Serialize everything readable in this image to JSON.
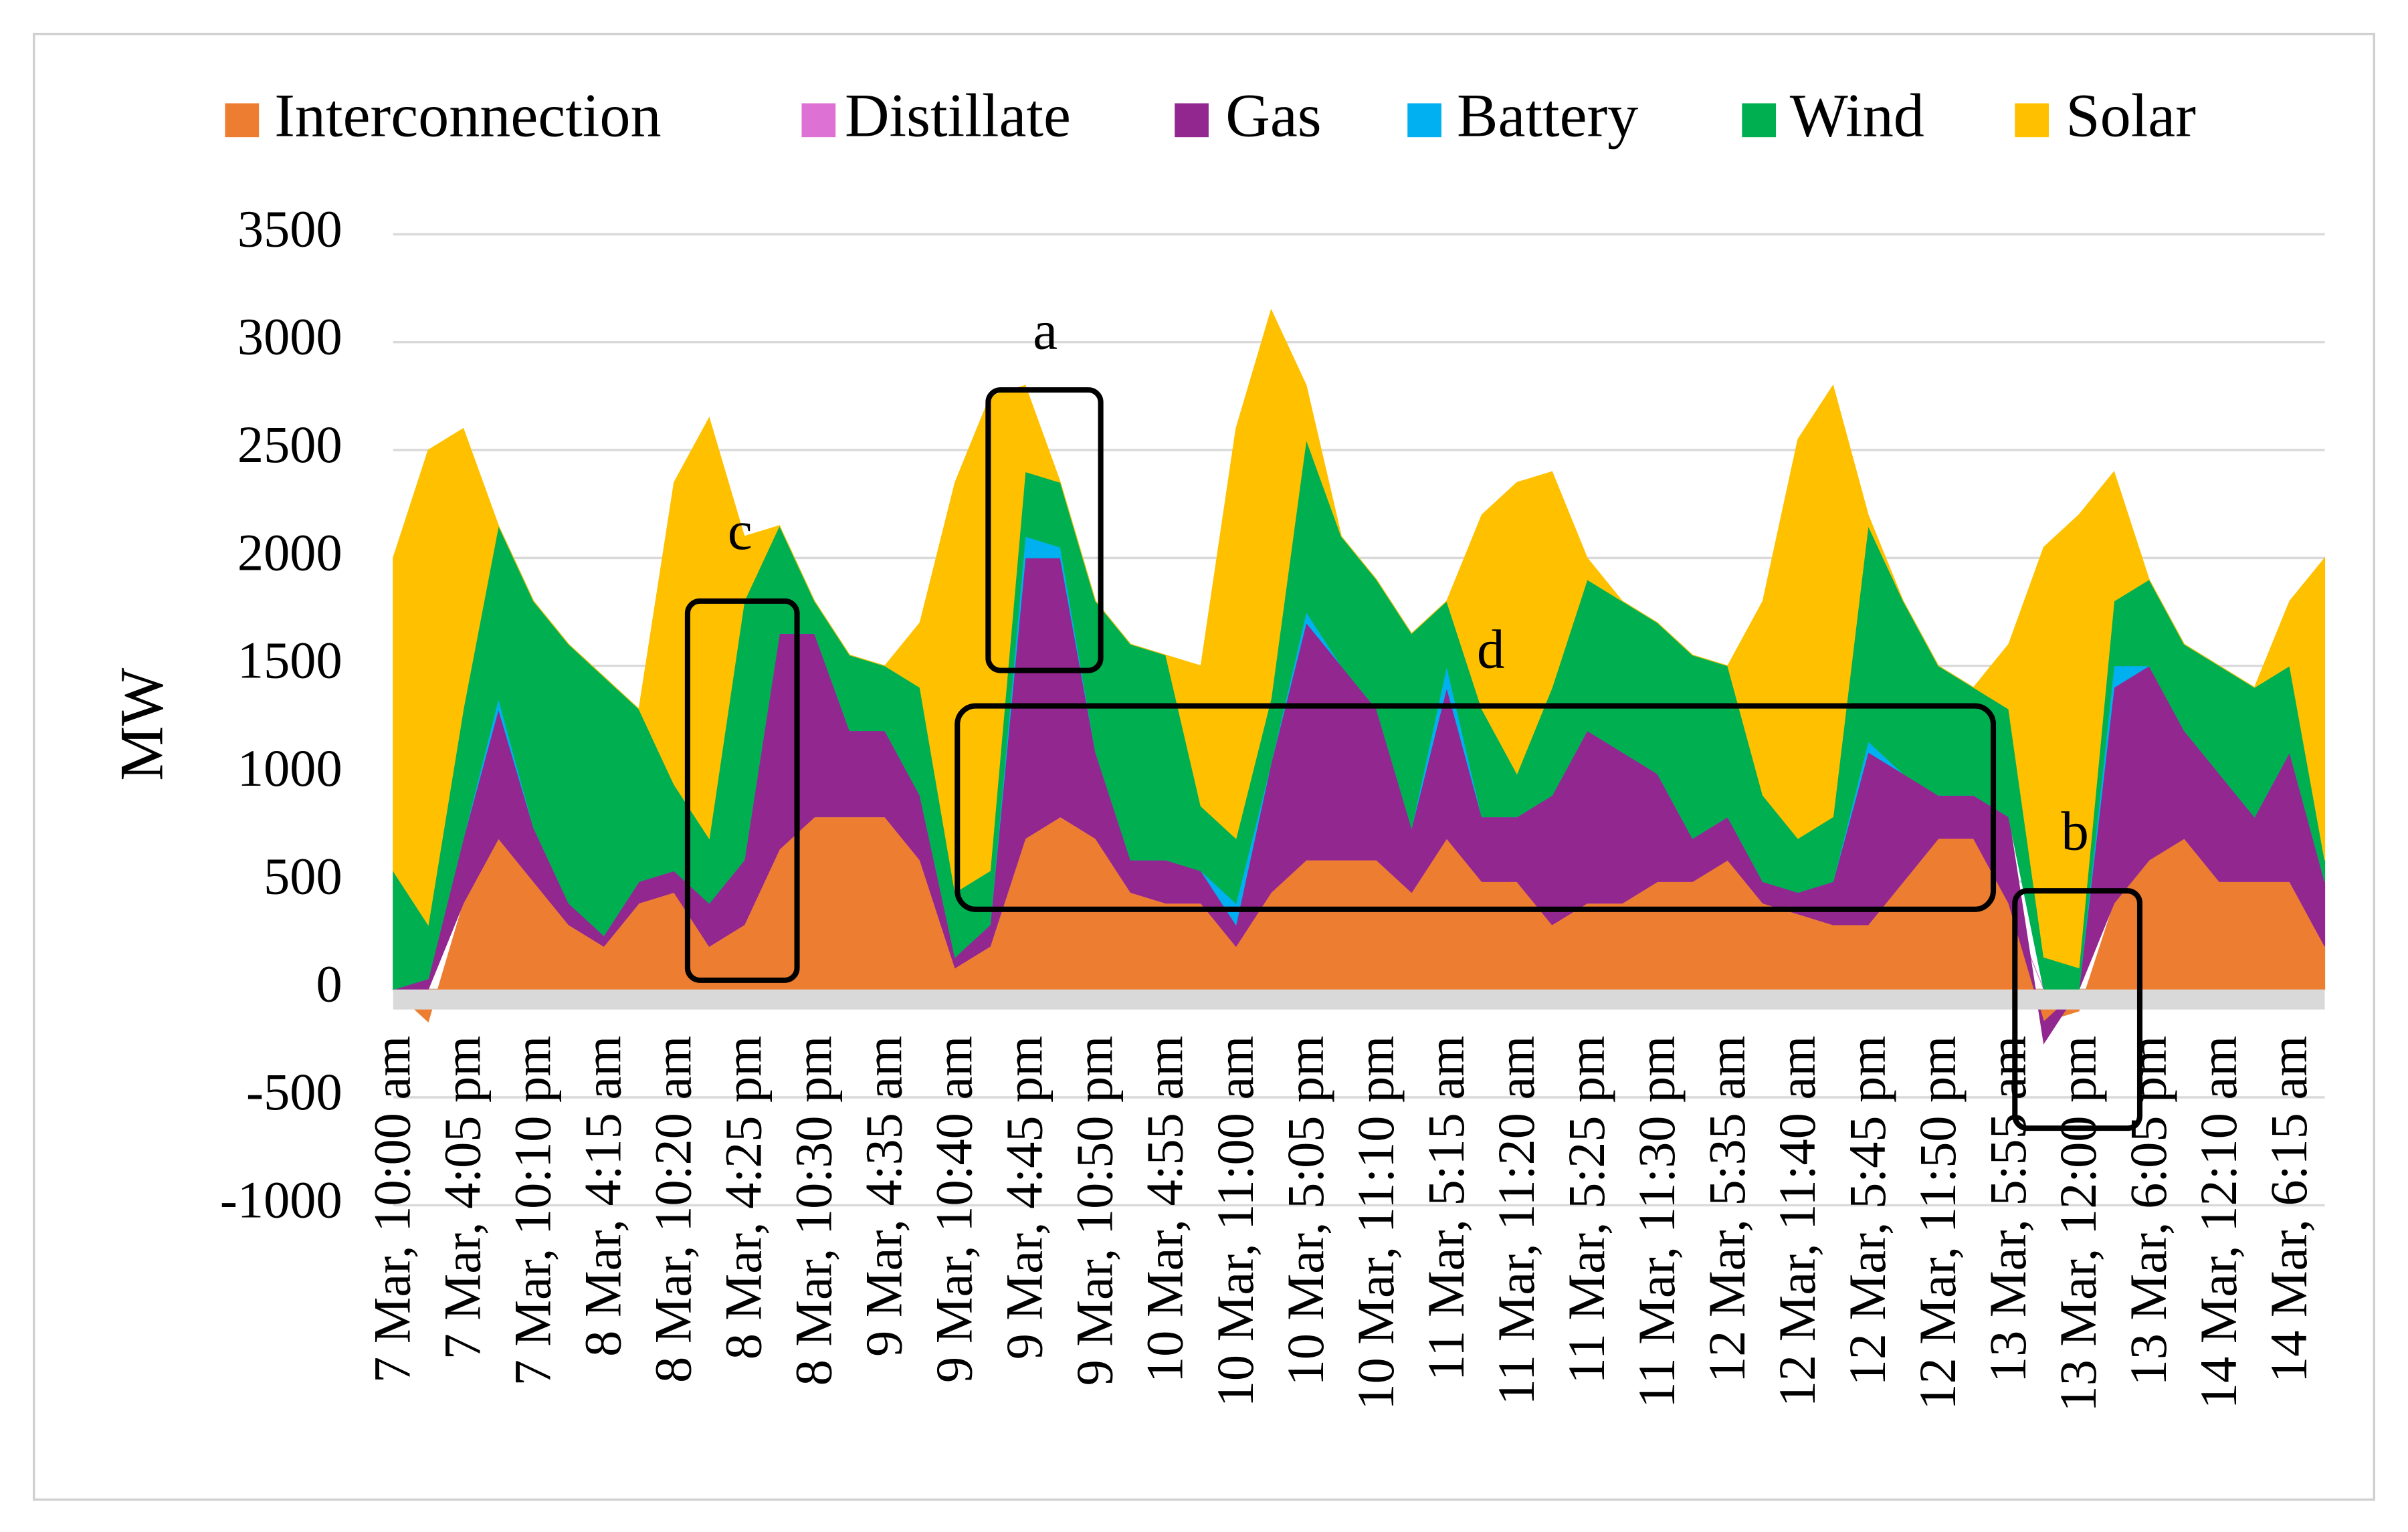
{
  "chart_data": {
    "type": "stacked_area",
    "y_label": "MW",
    "ylim": [
      -1000,
      3500
    ],
    "yticks": [
      -1000,
      -500,
      0,
      500,
      1000,
      1500,
      2000,
      2500,
      3000,
      3500
    ],
    "grid": true,
    "legend": "top",
    "categories": [
      "7 Mar, 10:00 am",
      null,
      "7 Mar, 4:05 pm",
      null,
      "7 Mar, 10:10 pm",
      null,
      "8 Mar, 4:15 am",
      null,
      "8 Mar, 10:20 am",
      null,
      "8 Mar, 4:25 pm",
      null,
      "8 Mar, 10:30 pm",
      null,
      "9 Mar, 4:35 am",
      null,
      "9 Mar, 10:40 am",
      null,
      "9 Mar, 4:45 pm",
      null,
      "9 Mar, 10:50 pm",
      null,
      "10 Mar, 4:55 am",
      null,
      "10 Mar, 11:00 am",
      null,
      "10 Mar, 5:05 pm",
      null,
      "10 Mar, 11:10 pm",
      null,
      "11 Mar, 5:15 am",
      null,
      "11 Mar, 11:20 am",
      null,
      "11 Mar, 5:25 pm",
      null,
      "11 Mar, 11:30 pm",
      null,
      "12 Mar, 5:35 am",
      null,
      "12 Mar, 11:40 am",
      null,
      "12 Mar, 5:45 pm",
      null,
      "12 Mar, 11:50 pm",
      null,
      "13 Mar, 5:55 am",
      null,
      "13 Mar, 12:00 pm",
      null,
      "13 Mar, 6:05 pm",
      null,
      "14 Mar, 12:10 am",
      null,
      "14 Mar, 6:15 am",
      null
    ],
    "series": [
      {
        "name": "Interconnection",
        "color": "#ED7D31",
        "values": [
          0,
          -150,
          400,
          700,
          500,
          300,
          200,
          400,
          450,
          200,
          300,
          650,
          800,
          800,
          800,
          600,
          100,
          200,
          700,
          800,
          700,
          450,
          400,
          400,
          200,
          450,
          600,
          600,
          600,
          450,
          700,
          500,
          500,
          300,
          400,
          400,
          500,
          500,
          600,
          400,
          350,
          300,
          300,
          500,
          700,
          700,
          400,
          -150,
          -100,
          400,
          600,
          700,
          500,
          500,
          500,
          200
        ]
      },
      {
        "name": "Distillate",
        "color": "#DD72D4",
        "values": [
          0,
          0,
          0,
          0,
          0,
          0,
          0,
          0,
          0,
          0,
          0,
          0,
          0,
          0,
          0,
          0,
          0,
          0,
          0,
          0,
          0,
          0,
          0,
          0,
          0,
          0,
          0,
          0,
          0,
          0,
          0,
          0,
          0,
          0,
          0,
          0,
          0,
          0,
          0,
          0,
          0,
          0,
          0,
          0,
          0,
          0,
          0,
          0,
          0,
          0,
          0,
          0,
          0,
          0,
          0,
          0
        ]
      },
      {
        "name": "Gas",
        "color": "#92278F",
        "values": [
          0,
          50,
          300,
          600,
          250,
          100,
          50,
          100,
          100,
          200,
          300,
          1000,
          850,
          400,
          400,
          300,
          50,
          100,
          1300,
          1200,
          400,
          150,
          200,
          150,
          100,
          600,
          1100,
          900,
          700,
          300,
          700,
          300,
          300,
          600,
          800,
          700,
          500,
          200,
          200,
          100,
          100,
          200,
          800,
          500,
          200,
          200,
          400,
          -100,
          0,
          1000,
          900,
          500,
          500,
          300,
          600,
          300
        ]
      },
      {
        "name": "Battery",
        "color": "#00B0F0",
        "values": [
          0,
          0,
          0,
          50,
          0,
          0,
          0,
          0,
          0,
          0,
          0,
          0,
          0,
          0,
          0,
          0,
          0,
          0,
          100,
          50,
          0,
          0,
          0,
          0,
          100,
          0,
          50,
          0,
          0,
          0,
          100,
          0,
          0,
          0,
          0,
          0,
          0,
          0,
          0,
          0,
          0,
          0,
          50,
          0,
          0,
          0,
          0,
          0,
          0,
          100,
          0,
          0,
          0,
          0,
          0,
          0
        ]
      },
      {
        "name": "Wind",
        "color": "#00B050",
        "values": [
          550,
          250,
          600,
          800,
          1050,
          1200,
          1200,
          800,
          400,
          300,
          1200,
          500,
          150,
          350,
          300,
          500,
          300,
          250,
          300,
          300,
          700,
          1000,
          950,
          300,
          300,
          300,
          800,
          600,
          600,
          900,
          300,
          500,
          200,
          500,
          700,
          700,
          700,
          850,
          700,
          400,
          250,
          300,
          1000,
          800,
          600,
          500,
          500,
          150,
          100,
          300,
          400,
          400,
          500,
          600,
          400,
          100
        ]
      },
      {
        "name": "Solar",
        "color": "#FFC000",
        "values": [
          1450,
          2200,
          1300,
          0,
          0,
          0,
          0,
          0,
          1400,
          1950,
          300,
          0,
          0,
          0,
          0,
          300,
          1900,
          2200,
          400,
          0,
          0,
          0,
          0,
          650,
          1900,
          1800,
          250,
          0,
          0,
          0,
          0,
          900,
          1350,
          1000,
          100,
          0,
          0,
          0,
          0,
          900,
          1850,
          2000,
          50,
          0,
          0,
          0,
          300,
          1900,
          2100,
          600,
          0,
          0,
          0,
          0,
          300,
          1400
        ]
      }
    ],
    "annotations": [
      "a",
      "b",
      "c",
      "d"
    ]
  }
}
